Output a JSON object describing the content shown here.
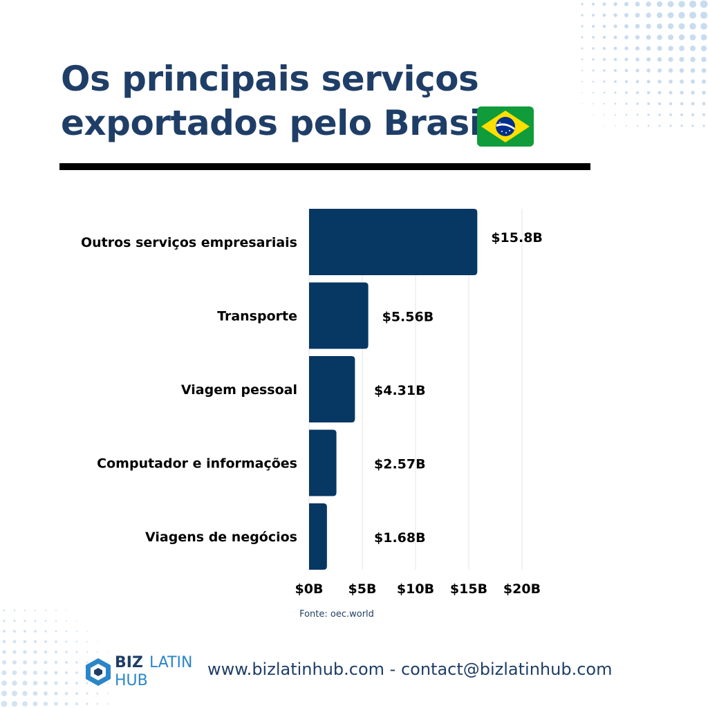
{
  "title": {
    "line1": "Os principais serviços",
    "line2": "exportados pelo Brasil"
  },
  "flag": {
    "icon": "brazil-flag-icon",
    "colors": {
      "green": "#109c3b",
      "yellow": "#fedf00",
      "blue": "#012f8b"
    }
  },
  "colors": {
    "bar": "#073763",
    "title": "#1f3e67",
    "accent": "#2a86c9"
  },
  "chart_data": {
    "type": "bar",
    "orientation": "horizontal",
    "categories": [
      "Outros serviços empresariais",
      "Transporte",
      "Viagem pessoal",
      "Computador e informações",
      "Viagens de negócios"
    ],
    "values": [
      15.8,
      5.56,
      4.31,
      2.57,
      1.68
    ],
    "value_labels": [
      "$15.8B",
      "$5.56B",
      "$4.31B",
      "$2.57B",
      "$1.68B"
    ],
    "xlim": [
      0,
      20
    ],
    "xticks": [
      0,
      5,
      10,
      15,
      20
    ],
    "xtick_labels": [
      "$0B",
      "$5B",
      "$10B",
      "$15B",
      "$20B"
    ],
    "grid": true,
    "title": "",
    "xlabel": "",
    "ylabel": ""
  },
  "source": "Fonte: oec.world",
  "footer": {
    "logo": {
      "biz": "BIZ",
      "latin": "LATIN",
      "hub": "HUB",
      "icon": "bizlatinhub-logo-icon"
    },
    "contact": "www.bizlatinhub.com - contact@bizlatinhub.com"
  }
}
